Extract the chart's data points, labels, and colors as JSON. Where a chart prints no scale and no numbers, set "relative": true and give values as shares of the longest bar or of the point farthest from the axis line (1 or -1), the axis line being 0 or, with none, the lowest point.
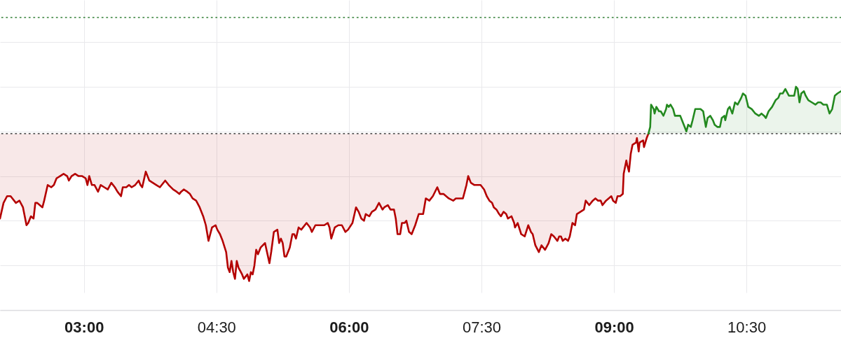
{
  "chart_data": {
    "type": "line",
    "relative": true,
    "grid": true,
    "xlim": [
      2.05,
      11.57
    ],
    "xticks": [
      {
        "value": 3,
        "label": "03:00"
      },
      {
        "value": 4.5,
        "label": "04:30"
      },
      {
        "value": 6,
        "label": "06:00"
      },
      {
        "value": 7.5,
        "label": "07:30"
      },
      {
        "value": 9,
        "label": "09:00"
      },
      {
        "value": 10.5,
        "label": "10:30"
      }
    ],
    "ref_lines": [
      {
        "axis": "y",
        "value": 0.79,
        "color": "#555555",
        "line_style": "dotted"
      },
      {
        "axis": "y",
        "value": 1.31,
        "color": "#2e7d32",
        "line_style": "dotted"
      }
    ],
    "series": [
      {
        "color": "#b40000",
        "x": [
          2.05,
          2.09,
          2.13,
          2.17,
          2.23,
          2.27,
          2.31,
          2.35,
          2.37,
          2.4,
          2.43,
          2.45,
          2.47,
          2.53,
          2.55,
          2.59,
          2.63,
          2.66,
          2.69,
          2.73,
          2.77,
          2.81,
          2.83,
          2.86,
          2.9,
          2.94,
          2.98,
          3.02,
          3.04,
          3.06,
          3.09,
          3.12,
          3.16,
          3.19,
          3.23,
          3.27,
          3.31,
          3.35,
          3.38,
          3.42,
          3.44,
          3.48,
          3.51,
          3.54,
          3.58,
          3.62,
          3.64,
          3.66,
          3.7,
          3.74,
          3.78,
          3.82,
          3.86,
          3.92,
          3.96,
          4.01,
          4.05,
          4.08,
          4.1,
          4.13,
          4.17,
          4.2,
          4.23,
          4.27,
          4.31,
          4.35,
          4.38,
          4.41,
          4.43,
          4.45,
          4.49,
          4.51,
          4.54,
          4.57,
          4.61,
          4.63,
          4.65,
          4.67,
          4.69,
          4.71,
          4.73,
          4.75,
          4.79,
          4.81,
          4.85,
          4.87,
          4.89,
          4.91,
          4.93,
          4.95,
          4.97,
          5.0,
          5.05,
          5.1,
          5.12,
          5.15,
          5.19,
          5.21,
          5.23,
          5.25,
          5.27,
          5.29,
          5.33,
          5.36,
          5.38,
          5.4,
          5.43,
          5.46,
          5.52,
          5.56,
          5.58,
          5.62,
          5.66,
          5.72,
          5.76,
          5.78,
          5.8,
          5.84,
          5.88,
          5.92,
          5.96,
          5.99,
          6.04,
          6.08,
          6.11,
          6.14,
          6.17,
          6.19,
          6.23,
          6.26,
          6.3,
          6.34,
          6.38,
          6.4,
          6.44,
          6.47,
          6.51,
          6.53,
          6.55,
          6.58,
          6.6,
          6.63,
          6.65,
          6.68,
          6.71,
          6.75,
          6.79,
          6.81,
          6.84,
          6.87,
          6.91,
          6.95,
          7.0,
          7.03,
          7.07,
          7.13,
          7.18,
          7.21,
          7.29,
          7.33,
          7.35,
          7.38,
          7.42,
          7.46,
          7.49,
          7.53,
          7.56,
          7.59,
          7.62,
          7.64,
          7.67,
          7.7,
          7.72,
          7.75,
          7.78,
          7.8,
          7.84,
          7.87,
          7.88,
          7.91,
          7.95,
          7.99,
          8.03,
          8.06,
          8.08,
          8.11,
          8.15,
          8.18,
          8.22,
          8.26,
          8.29,
          8.32,
          8.36,
          8.38,
          8.4,
          8.42,
          8.45,
          8.48,
          8.5,
          8.53,
          8.56,
          8.58,
          8.62,
          8.66,
          8.68,
          8.72,
          8.76,
          8.79,
          8.82,
          8.85,
          8.87,
          8.91,
          8.94,
          8.97,
          8.99,
          9.02,
          9.04,
          9.07,
          9.1,
          9.11,
          9.14,
          9.15,
          9.17,
          9.19,
          9.21,
          9.25,
          9.26,
          9.28,
          9.29,
          9.33,
          9.34,
          9.37,
          9.39
        ],
        "values": [
          0.41,
          0.48,
          0.51,
          0.51,
          0.48,
          0.49,
          0.46,
          0.38,
          0.39,
          0.42,
          0.41,
          0.48,
          0.48,
          0.46,
          0.49,
          0.56,
          0.55,
          0.56,
          0.59,
          0.6,
          0.61,
          0.6,
          0.58,
          0.6,
          0.61,
          0.6,
          0.6,
          0.59,
          0.56,
          0.6,
          0.56,
          0.56,
          0.53,
          0.56,
          0.55,
          0.54,
          0.57,
          0.55,
          0.53,
          0.51,
          0.55,
          0.55,
          0.56,
          0.55,
          0.56,
          0.58,
          0.56,
          0.55,
          0.62,
          0.58,
          0.57,
          0.56,
          0.55,
          0.58,
          0.56,
          0.54,
          0.53,
          0.52,
          0.53,
          0.54,
          0.53,
          0.52,
          0.5,
          0.49,
          0.46,
          0.42,
          0.38,
          0.31,
          0.34,
          0.37,
          0.38,
          0.36,
          0.34,
          0.31,
          0.26,
          0.19,
          0.17,
          0.22,
          0.17,
          0.14,
          0.22,
          0.19,
          0.16,
          0.14,
          0.16,
          0.13,
          0.17,
          0.16,
          0.2,
          0.27,
          0.25,
          0.28,
          0.3,
          0.21,
          0.26,
          0.35,
          0.36,
          0.3,
          0.32,
          0.3,
          0.24,
          0.24,
          0.28,
          0.34,
          0.34,
          0.32,
          0.37,
          0.36,
          0.39,
          0.37,
          0.35,
          0.38,
          0.38,
          0.38,
          0.39,
          0.37,
          0.32,
          0.37,
          0.38,
          0.38,
          0.35,
          0.36,
          0.39,
          0.46,
          0.44,
          0.41,
          0.4,
          0.43,
          0.42,
          0.44,
          0.45,
          0.48,
          0.45,
          0.46,
          0.47,
          0.45,
          0.45,
          0.41,
          0.34,
          0.34,
          0.39,
          0.39,
          0.4,
          0.35,
          0.34,
          0.38,
          0.43,
          0.43,
          0.43,
          0.5,
          0.49,
          0.51,
          0.55,
          0.52,
          0.52,
          0.5,
          0.49,
          0.5,
          0.5,
          0.56,
          0.6,
          0.57,
          0.56,
          0.56,
          0.56,
          0.54,
          0.51,
          0.49,
          0.48,
          0.46,
          0.45,
          0.43,
          0.42,
          0.44,
          0.43,
          0.41,
          0.42,
          0.39,
          0.37,
          0.39,
          0.34,
          0.33,
          0.38,
          0.35,
          0.34,
          0.29,
          0.26,
          0.29,
          0.27,
          0.3,
          0.34,
          0.33,
          0.31,
          0.33,
          0.33,
          0.31,
          0.32,
          0.31,
          0.33,
          0.39,
          0.38,
          0.43,
          0.44,
          0.45,
          0.49,
          0.47,
          0.49,
          0.5,
          0.49,
          0.49,
          0.47,
          0.49,
          0.5,
          0.51,
          0.49,
          0.48,
          0.51,
          0.51,
          0.52,
          0.61,
          0.67,
          0.65,
          0.62,
          0.7,
          0.74,
          0.75,
          0.77,
          0.71,
          0.75,
          0.76,
          0.73,
          0.77,
          0.79
        ],
        "lower": [
          0.41,
          0.48,
          0.51,
          0.51,
          0.48,
          0.49,
          0.46,
          0.38,
          0.39,
          0.42,
          0.41,
          0.48,
          0.48,
          0.46,
          0.49,
          0.56,
          0.55,
          0.56,
          0.59,
          0.6,
          0.61,
          0.6,
          0.58,
          0.6,
          0.61,
          0.6,
          0.6,
          0.59,
          0.56,
          0.6,
          0.56,
          0.56,
          0.53,
          0.56,
          0.55,
          0.54,
          0.57,
          0.55,
          0.53,
          0.51,
          0.55,
          0.55,
          0.56,
          0.55,
          0.56,
          0.58,
          0.56,
          0.55,
          0.62,
          0.58,
          0.57,
          0.56,
          0.55,
          0.58,
          0.56,
          0.54,
          0.53,
          0.52,
          0.53,
          0.54,
          0.53,
          0.52,
          0.5,
          0.49,
          0.46,
          0.42,
          0.38,
          0.31,
          0.34,
          0.37,
          0.38,
          0.36,
          0.34,
          0.31,
          0.26,
          0.19,
          0.17,
          0.22,
          0.17,
          0.14,
          0.22,
          0.19,
          0.16,
          0.14,
          0.16,
          0.13,
          0.17,
          0.16,
          0.2,
          0.27,
          0.25,
          0.28,
          0.3,
          0.21,
          0.26,
          0.35,
          0.36,
          0.3,
          0.32,
          0.3,
          0.24,
          0.24,
          0.28,
          0.34,
          0.34,
          0.32,
          0.37,
          0.36,
          0.39,
          0.37,
          0.35,
          0.38,
          0.38,
          0.38,
          0.39,
          0.37,
          0.32,
          0.37,
          0.38,
          0.38,
          0.35,
          0.36,
          0.39,
          0.46,
          0.44,
          0.41,
          0.4,
          0.43,
          0.42,
          0.44,
          0.45,
          0.48,
          0.45,
          0.46,
          0.47,
          0.45,
          0.45,
          0.41,
          0.34,
          0.34,
          0.39,
          0.39,
          0.4,
          0.35,
          0.34,
          0.38,
          0.43,
          0.43,
          0.43,
          0.5,
          0.49,
          0.51,
          0.55,
          0.52,
          0.52,
          0.5,
          0.49,
          0.5,
          0.5,
          0.56,
          0.6,
          0.57,
          0.56,
          0.56,
          0.56,
          0.54,
          0.51,
          0.49,
          0.48,
          0.46,
          0.45,
          0.43,
          0.42,
          0.44,
          0.43,
          0.41,
          0.42,
          0.39,
          0.37,
          0.39,
          0.34,
          0.33,
          0.38,
          0.35,
          0.34,
          0.29,
          0.26,
          0.29,
          0.27,
          0.3,
          0.34,
          0.33,
          0.31,
          0.33,
          0.33,
          0.31,
          0.32,
          0.31,
          0.33,
          0.39,
          0.38,
          0.43,
          0.44,
          0.45,
          0.49,
          0.47,
          0.49,
          0.5,
          0.49,
          0.49,
          0.47,
          0.49,
          0.5,
          0.51,
          0.49,
          0.48,
          0.51,
          0.51,
          0.52,
          0.61,
          0.67,
          0.65,
          0.62,
          0.7,
          0.74,
          0.75,
          0.77,
          0.71,
          0.75,
          0.76,
          0.73,
          0.77,
          0.79
        ],
        "upper": [
          0.79,
          0.79,
          0.79,
          0.79,
          0.79,
          0.79,
          0.79,
          0.79,
          0.79,
          0.79,
          0.79,
          0.79,
          0.79,
          0.79,
          0.79,
          0.79,
          0.79,
          0.79,
          0.79,
          0.79,
          0.79,
          0.79,
          0.79,
          0.79,
          0.79,
          0.79,
          0.79,
          0.79,
          0.79,
          0.79,
          0.79,
          0.79,
          0.79,
          0.79,
          0.79,
          0.79,
          0.79,
          0.79,
          0.79,
          0.79,
          0.79,
          0.79,
          0.79,
          0.79,
          0.79,
          0.79,
          0.79,
          0.79,
          0.79,
          0.79,
          0.79,
          0.79,
          0.79,
          0.79,
          0.79,
          0.79,
          0.79,
          0.79,
          0.79,
          0.79,
          0.79,
          0.79,
          0.79,
          0.79,
          0.79,
          0.79,
          0.79,
          0.79,
          0.79,
          0.79,
          0.79,
          0.79,
          0.79,
          0.79,
          0.79,
          0.79,
          0.79,
          0.79,
          0.79,
          0.79,
          0.79,
          0.79,
          0.79,
          0.79,
          0.79,
          0.79,
          0.79,
          0.79,
          0.79,
          0.79,
          0.79,
          0.79,
          0.79,
          0.79,
          0.79,
          0.79,
          0.79,
          0.79,
          0.79,
          0.79,
          0.79,
          0.79,
          0.79,
          0.79,
          0.79,
          0.79,
          0.79,
          0.79,
          0.79,
          0.79,
          0.79,
          0.79,
          0.79,
          0.79,
          0.79,
          0.79,
          0.79,
          0.79,
          0.79,
          0.79,
          0.79,
          0.79,
          0.79,
          0.79,
          0.79,
          0.79,
          0.79,
          0.79,
          0.79,
          0.79,
          0.79,
          0.79,
          0.79,
          0.79,
          0.79,
          0.79,
          0.79,
          0.79,
          0.79,
          0.79,
          0.79,
          0.79,
          0.79,
          0.79,
          0.79,
          0.79,
          0.79,
          0.79,
          0.79,
          0.79,
          0.79,
          0.79,
          0.79,
          0.79,
          0.79,
          0.79,
          0.79,
          0.79,
          0.79,
          0.79,
          0.79,
          0.79,
          0.79,
          0.79,
          0.79,
          0.79,
          0.79,
          0.79,
          0.79,
          0.79,
          0.79,
          0.79,
          0.79,
          0.79,
          0.79,
          0.79,
          0.79,
          0.79,
          0.79,
          0.79,
          0.79,
          0.79,
          0.79,
          0.79,
          0.79,
          0.79,
          0.79,
          0.79,
          0.79,
          0.79,
          0.79,
          0.79,
          0.79,
          0.79,
          0.79,
          0.79,
          0.79,
          0.79,
          0.79,
          0.79,
          0.79,
          0.79,
          0.79,
          0.79,
          0.79,
          0.79,
          0.79,
          0.79,
          0.79,
          0.79,
          0.79,
          0.79,
          0.79,
          0.79,
          0.79,
          0.79,
          0.79,
          0.79,
          0.79,
          0.79,
          0.79,
          0.79,
          0.79,
          0.79,
          0.79,
          0.79,
          0.79,
          0.79,
          0.79,
          0.79,
          0.79,
          0.79,
          0.79
        ]
      },
      {
        "type": "area",
        "color": "#23891f",
        "x": [
          9.39,
          9.41,
          9.42,
          9.45,
          9.46,
          9.48,
          9.51,
          9.53,
          9.56,
          9.59,
          9.6,
          9.62,
          9.64,
          9.67,
          9.69,
          9.72,
          9.75,
          9.77,
          9.8,
          9.82,
          9.84,
          9.87,
          9.89,
          9.92,
          9.94,
          9.98,
          10.01,
          10.04,
          10.06,
          10.09,
          10.12,
          10.14,
          10.17,
          10.2,
          10.22,
          10.25,
          10.26,
          10.29,
          10.31,
          10.34,
          10.37,
          10.4,
          10.44,
          10.46,
          10.49,
          10.52,
          10.56,
          10.6,
          10.64,
          10.67,
          10.7,
          10.72,
          10.75,
          10.79,
          10.83,
          10.86,
          10.88,
          10.91,
          10.94,
          10.98,
          11.02,
          11.04,
          11.06,
          11.08,
          11.1,
          11.12,
          11.15,
          11.17,
          11.2,
          11.24,
          11.28,
          11.31,
          11.34,
          11.37,
          11.41,
          11.44,
          11.47,
          11.5,
          11.53,
          11.57
        ],
        "values": [
          0.79,
          0.82,
          0.92,
          0.9,
          0.88,
          0.91,
          0.89,
          0.89,
          0.87,
          0.9,
          0.92,
          0.91,
          0.92,
          0.9,
          0.87,
          0.87,
          0.87,
          0.85,
          0.82,
          0.8,
          0.83,
          0.82,
          0.85,
          0.9,
          0.9,
          0.9,
          0.89,
          0.82,
          0.86,
          0.87,
          0.85,
          0.83,
          0.82,
          0.82,
          0.86,
          0.87,
          0.85,
          0.9,
          0.91,
          0.88,
          0.93,
          0.92,
          0.95,
          0.97,
          0.96,
          0.91,
          0.9,
          0.88,
          0.87,
          0.88,
          0.87,
          0.86,
          0.89,
          0.91,
          0.94,
          0.95,
          0.97,
          0.97,
          0.99,
          0.96,
          0.96,
          0.96,
          1.0,
          0.99,
          0.93,
          0.97,
          0.98,
          0.96,
          0.94,
          0.93,
          0.92,
          0.93,
          0.93,
          0.92,
          0.92,
          0.88,
          0.9,
          0.96,
          0.97,
          0.98
        ]
      }
    ]
  }
}
